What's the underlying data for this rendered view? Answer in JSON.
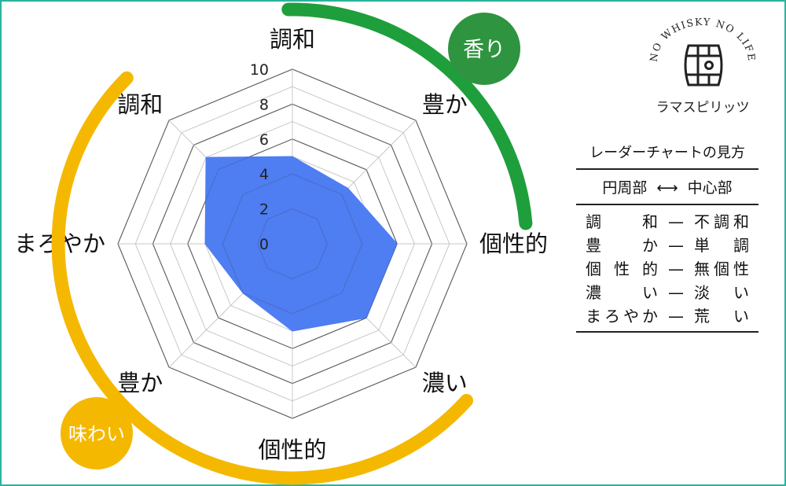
{
  "chart_data": {
    "type": "radar",
    "axes": [
      "調和",
      "豊か",
      "個性的",
      "濃い",
      "個性的",
      "豊か",
      "まろやか",
      "調和"
    ],
    "values": [
      5,
      4.5,
      6,
      6,
      5,
      4,
      5,
      7
    ],
    "rlim": [
      0,
      10
    ],
    "ticks": [
      "0",
      "2",
      "4",
      "6",
      "8",
      "10"
    ],
    "fill_color": "#4f7df2",
    "grid": true
  },
  "arcs": {
    "aroma": {
      "label": "香り",
      "color": "#1f9e3c",
      "badge_color": "#2e9440"
    },
    "taste": {
      "label": "味わい",
      "color": "#f5b800",
      "badge_color": "#f5b800"
    }
  },
  "logo": {
    "arc_text": "NO WHISKY NO LIFE",
    "brand": "ラマスピリッツ",
    "icon": "whisky-barrel-icon"
  },
  "legend": {
    "title": "レーダーチャートの見方",
    "header_left": "円周部",
    "header_arrow": "⟷",
    "header_right": "中心部",
    "rows": [
      {
        "left": "調和",
        "right": "不調和"
      },
      {
        "left": "豊か",
        "right": "単調"
      },
      {
        "left": "個性的",
        "right": "無個性"
      },
      {
        "left": "濃い",
        "right": "淡い"
      },
      {
        "left": "まろやか",
        "right": "荒い"
      }
    ],
    "dash": "—"
  }
}
